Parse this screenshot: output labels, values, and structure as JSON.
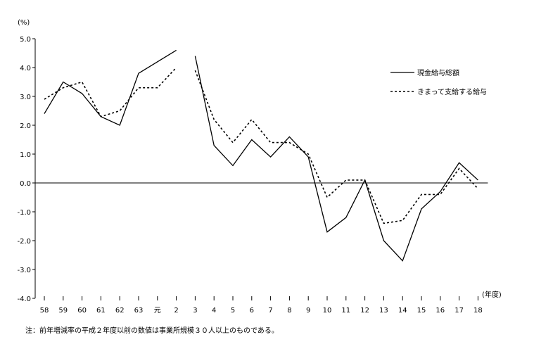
{
  "chart_data": {
    "type": "line",
    "yunit": "(%)",
    "xunit": "(年度)",
    "ylim": [
      -4.0,
      5.0
    ],
    "yticks": [
      "5.0",
      "4.0",
      "3.0",
      "2.0",
      "1.0",
      "0.0",
      "-1.0",
      "-2.0",
      "-3.0",
      "-4.0"
    ],
    "categories": [
      "58",
      "59",
      "60",
      "61",
      "62",
      "63",
      "元",
      "2",
      "3",
      "4",
      "5",
      "6",
      "7",
      "8",
      "9",
      "10",
      "11",
      "12",
      "13",
      "14",
      "15",
      "16",
      "17",
      "18"
    ],
    "grid": false,
    "legend_position": "top-right",
    "series": [
      {
        "name": "現金給与総額",
        "style": "solid",
        "values": [
          2.4,
          3.5,
          3.1,
          2.3,
          2.0,
          3.8,
          4.2,
          4.6,
          4.4,
          1.3,
          0.6,
          1.5,
          0.9,
          1.6,
          0.9,
          -1.7,
          -1.2,
          0.1,
          -2.0,
          -2.7,
          -0.9,
          -0.3,
          0.7,
          0.1
        ],
        "break_after": "2"
      },
      {
        "name": "きまって支給する給与",
        "style": "dashed",
        "values": [
          2.9,
          3.3,
          3.5,
          2.3,
          2.5,
          3.3,
          3.3,
          4.0,
          3.9,
          2.2,
          1.4,
          2.2,
          1.4,
          1.4,
          1.0,
          -0.5,
          0.1,
          0.1,
          -1.4,
          -1.3,
          -0.4,
          -0.4,
          0.5,
          -0.2
        ],
        "break_after": "2"
      }
    ]
  },
  "note": "注：前年増減率の平成２年度以前の数値は事業所規模３０人以上のものである。",
  "colors": {
    "line": "#000000",
    "background": "#ffffff"
  }
}
